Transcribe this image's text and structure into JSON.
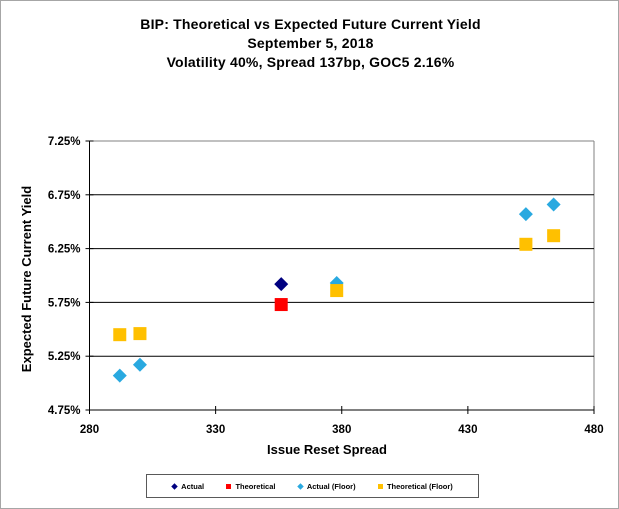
{
  "chart_data": {
    "type": "scatter",
    "title": "BIP: Theoretical vs Expected Future Current Yield",
    "subtitle": "September 5, 2018",
    "subtitle2": "Volatility 40%, Spread 137bp, GOC5 2.16%",
    "xlabel": "Issue Reset Spread",
    "ylabel": "Expected Future Current Yield",
    "xlim": [
      280,
      480
    ],
    "ylim": [
      4.75,
      7.25
    ],
    "xticks": [
      280,
      330,
      380,
      430,
      480
    ],
    "xtick_labels": [
      "280",
      "330",
      "380",
      "430",
      "480"
    ],
    "yticks": [
      4.75,
      5.25,
      5.75,
      6.25,
      6.75,
      7.25
    ],
    "ytick_labels": [
      "4.75%",
      "5.25%",
      "5.75%",
      "6.25%",
      "6.75%",
      "7.25%"
    ],
    "grid": true,
    "legend_position": "bottom",
    "axis_color": "#000000",
    "plot_frame_color": "#808080",
    "series": [
      {
        "name": "Actual",
        "marker": "diamond",
        "color": "#000080",
        "points": [
          [
            356,
            5.92
          ]
        ]
      },
      {
        "name": "Theoretical",
        "marker": "square",
        "color": "#FF0000",
        "points": [
          [
            356,
            5.73
          ]
        ]
      },
      {
        "name": "Actual (Floor)",
        "marker": "diamond",
        "color": "#29A9E0",
        "points": [
          [
            292,
            5.07
          ],
          [
            300,
            5.17
          ],
          [
            378,
            5.93
          ],
          [
            453,
            6.57
          ],
          [
            464,
            6.66
          ]
        ]
      },
      {
        "name": "Theoretical (Floor)",
        "marker": "square",
        "color": "#FFC000",
        "points": [
          [
            292,
            5.45
          ],
          [
            300,
            5.46
          ],
          [
            378,
            5.86
          ],
          [
            453,
            6.29
          ],
          [
            464,
            6.37
          ]
        ]
      }
    ]
  }
}
